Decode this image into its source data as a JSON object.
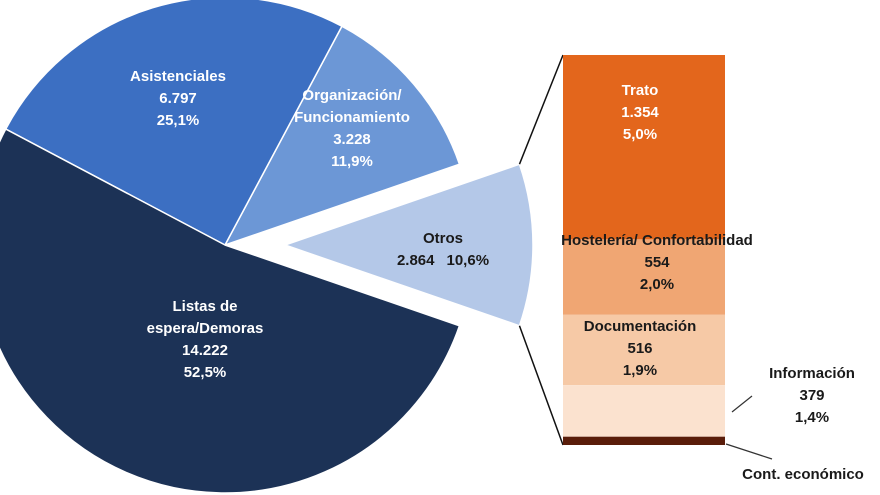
{
  "chart_data": {
    "type": "bar-of-pie",
    "pie": {
      "categories": [
        "Otros",
        "Organización/ Funcionamiento",
        "Asistenciales",
        "Listas de espera/Demoras"
      ],
      "values": [
        2864,
        3228,
        6797,
        14222
      ],
      "value_labels": [
        "2.864",
        "3.228",
        "6.797",
        "14.222"
      ],
      "percents": [
        10.6,
        11.9,
        25.1,
        52.5
      ],
      "percent_labels": [
        "10,6%",
        "11,9%",
        "25,1%",
        "52,5%"
      ],
      "colors": [
        "#b4c8e8",
        "#6c97d6",
        "#3c6fc2",
        "#1c3256"
      ]
    },
    "bar": {
      "categories": [
        "Trato",
        "Hostelería/ Confortabilidad",
        "Documentación",
        "Información",
        "Cont. económico"
      ],
      "values": [
        1354,
        554,
        516,
        379,
        61
      ],
      "value_labels": [
        "1.354",
        "554",
        "516",
        "379",
        null
      ],
      "percents": [
        5.0,
        2.0,
        1.9,
        1.4,
        0.2
      ],
      "percent_labels": [
        "5,0%",
        "2,0%",
        "1,9%",
        "1,4%",
        null
      ],
      "colors": [
        "#e3661c",
        "#f0a673",
        "#f6c9a6",
        "#fbe2cf",
        "#5a1d0a"
      ]
    }
  }
}
